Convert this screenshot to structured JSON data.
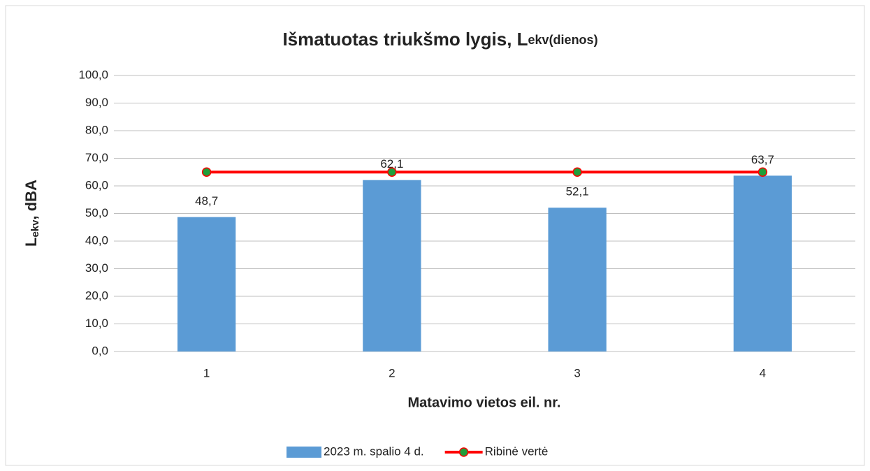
{
  "chart_data": {
    "type": "bar",
    "title": "Išmatuotas triukšmo lygis, L",
    "title_subscript": "ekv(dienos)",
    "y_label": {
      "main": "L",
      "subscript": "ekv",
      "suffix": ", dBA"
    },
    "x_label": "Matavimo vietos eil. nr.",
    "categories": [
      "1",
      "2",
      "3",
      "4"
    ],
    "series": [
      {
        "name": "2023 m. spalio 4 d.",
        "type": "bar",
        "color": "#5b9bd5",
        "values": [
          48.7,
          62.1,
          52.1,
          63.7
        ],
        "value_labels": [
          "48,7",
          "62,1",
          "52,1",
          "63,7"
        ]
      },
      {
        "name": "Ribinė vertė",
        "type": "line",
        "color": "#ff0000",
        "marker_color": "#1f9e3a",
        "values": [
          65,
          65,
          65,
          65
        ]
      }
    ],
    "ylim": [
      0,
      100
    ],
    "yticks": [
      {
        "value": 0,
        "label": "0,0"
      },
      {
        "value": 10,
        "label": "10,0"
      },
      {
        "value": 20,
        "label": "20,0"
      },
      {
        "value": 30,
        "label": "30,0"
      },
      {
        "value": 40,
        "label": "40,0"
      },
      {
        "value": 50,
        "label": "50,0"
      },
      {
        "value": 60,
        "label": "60,0"
      },
      {
        "value": 70,
        "label": "70,0"
      },
      {
        "value": 80,
        "label": "80,0"
      },
      {
        "value": 90,
        "label": "90,0"
      },
      {
        "value": 100,
        "label": "100,0"
      }
    ],
    "grid": true,
    "legend": "bottom"
  }
}
